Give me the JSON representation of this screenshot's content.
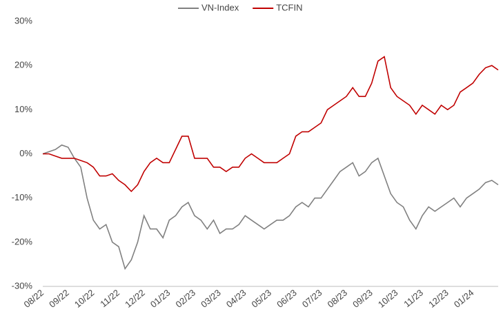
{
  "chart_data": {
    "type": "line",
    "categories": [
      "08/22",
      null,
      null,
      null,
      "09/22",
      null,
      null,
      null,
      "10/22",
      null,
      null,
      null,
      "11/22",
      null,
      null,
      null,
      "12/22",
      null,
      null,
      null,
      "01/23",
      null,
      null,
      null,
      "02/23",
      null,
      null,
      null,
      "03/23",
      null,
      null,
      null,
      "04/23",
      null,
      null,
      null,
      "05/23",
      null,
      null,
      null,
      "06/23",
      null,
      null,
      null,
      "07/23",
      null,
      null,
      null,
      "08/23",
      null,
      null,
      null,
      "09/23",
      null,
      null,
      null,
      "10/23",
      null,
      null,
      null,
      "11/23",
      null,
      null,
      null,
      "12/23",
      null,
      null,
      null,
      "01/24",
      null,
      null,
      null,
      null
    ],
    "series": [
      {
        "name": "VN-Index",
        "color": "#808080",
        "values": [
          0,
          0.5,
          1,
          2,
          1.5,
          -1,
          -3,
          -10,
          -15,
          -17,
          -16,
          -20,
          -21,
          -26,
          -24,
          -20,
          -14,
          -17,
          -17,
          -19,
          -15,
          -14,
          -12,
          -11,
          -14,
          -15,
          -17,
          -15,
          -18,
          -17,
          -17,
          -16,
          -14,
          -15,
          -16,
          -17,
          -16,
          -15,
          -15,
          -14,
          -12,
          -11,
          -12,
          -10,
          -10,
          -8,
          -6,
          -4,
          -3,
          -2,
          -5,
          -4,
          -2,
          -1,
          -5,
          -9,
          -11,
          -12,
          -15,
          -17,
          -14,
          -12,
          -13,
          -12,
          -11,
          -10,
          -12,
          -10,
          -9,
          -8,
          -6.5,
          -6,
          -7
        ]
      },
      {
        "name": "TCFIN",
        "color": "#c00000",
        "values": [
          0,
          0,
          -0.5,
          -1,
          -1,
          -1,
          -1.5,
          -2,
          -3,
          -5,
          -5,
          -4.5,
          -6,
          -7,
          -8.5,
          -7,
          -4,
          -2,
          -1,
          -2,
          -2,
          1,
          4,
          4,
          -1,
          -1,
          -1,
          -3,
          -3,
          -4,
          -3,
          -3,
          -1,
          0,
          -1,
          -2,
          -2,
          -2,
          -1,
          0,
          4,
          5,
          5,
          6,
          7,
          10,
          11,
          12,
          13,
          15,
          13,
          13,
          16,
          21,
          22,
          15,
          13,
          12,
          11,
          9,
          11,
          10,
          9,
          11,
          10,
          11,
          14,
          15,
          16,
          18,
          19.5,
          20,
          19
        ]
      }
    ],
    "ylim": [
      -30,
      30
    ],
    "yticks": [
      {
        "value": -30,
        "label": "-30%"
      },
      {
        "value": -20,
        "label": "-20%"
      },
      {
        "value": -10,
        "label": "-10%"
      },
      {
        "value": 0,
        "label": "0%"
      },
      {
        "value": 10,
        "label": "10%"
      },
      {
        "value": 20,
        "label": "20%"
      },
      {
        "value": 30,
        "label": "30%"
      }
    ],
    "grid": false,
    "legend": "top"
  }
}
